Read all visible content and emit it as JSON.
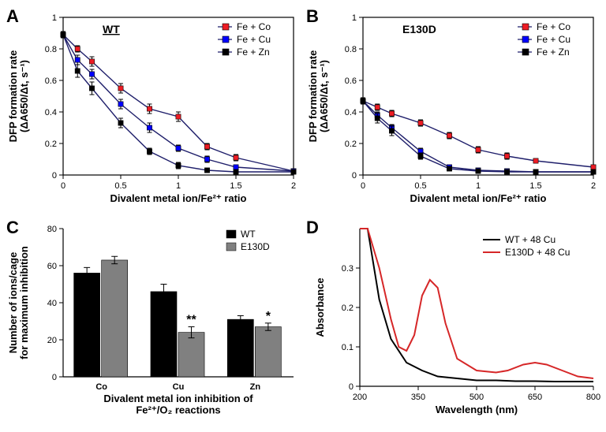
{
  "panelA": {
    "label": "A",
    "type": "line-scatter",
    "title": "WT",
    "title_underline": true,
    "xlabel": "Divalent metal ion/Fe²⁺ ratio",
    "ylabel": "DFP formation rate (ΔA650/Δt, s⁻¹)",
    "xlim": [
      0,
      2
    ],
    "ylim": [
      0,
      1
    ],
    "xticks": [
      0,
      0.5,
      1,
      1.5,
      2
    ],
    "yticks": [
      0,
      0.2,
      0.4,
      0.6,
      0.8,
      1
    ],
    "series": [
      {
        "name": "Fe + Co",
        "color": "#ed1c24",
        "marker": "square",
        "x": [
          0,
          0.125,
          0.25,
          0.5,
          0.75,
          1,
          1.25,
          1.5,
          2
        ],
        "y": [
          0.89,
          0.8,
          0.72,
          0.55,
          0.42,
          0.37,
          0.18,
          0.11,
          0.025
        ],
        "err": [
          0.02,
          0.02,
          0.03,
          0.03,
          0.03,
          0.03,
          0.02,
          0.02,
          0.01
        ]
      },
      {
        "name": "Fe + Cu",
        "color": "#0000ff",
        "marker": "square",
        "x": [
          0,
          0.125,
          0.25,
          0.5,
          0.75,
          1,
          1.25,
          1.5,
          2
        ],
        "y": [
          0.89,
          0.73,
          0.64,
          0.45,
          0.3,
          0.17,
          0.1,
          0.05,
          0.025
        ],
        "err": [
          0.02,
          0.03,
          0.03,
          0.03,
          0.03,
          0.02,
          0.02,
          0.01,
          0.01
        ]
      },
      {
        "name": "Fe + Zn",
        "color": "#000000",
        "marker": "square",
        "x": [
          0,
          0.125,
          0.25,
          0.5,
          0.75,
          1,
          1.25,
          1.5,
          2
        ],
        "y": [
          0.89,
          0.66,
          0.55,
          0.33,
          0.15,
          0.06,
          0.03,
          0.02,
          0.02
        ],
        "err": [
          0.02,
          0.04,
          0.04,
          0.03,
          0.02,
          0.02,
          0.01,
          0.01,
          0.01
        ]
      }
    ],
    "line_color": "#1f1f6b",
    "marker_size": 5,
    "axis_color": "#000000",
    "tick_fontsize": 11,
    "label_fontsize": 13,
    "legend_pos": "top-right"
  },
  "panelB": {
    "label": "B",
    "type": "line-scatter",
    "title": "E130D",
    "title_underline": false,
    "xlabel": "Divalent metal ion/Fe²⁺ ratio",
    "ylabel": "DFP formation rate (ΔA650/Δt, s⁻¹)",
    "xlim": [
      0,
      2
    ],
    "ylim": [
      0,
      1
    ],
    "xticks": [
      0,
      0.5,
      1,
      1.5,
      2
    ],
    "yticks": [
      0,
      0.2,
      0.4,
      0.6,
      0.8,
      1
    ],
    "series": [
      {
        "name": "Fe + Co",
        "color": "#ed1c24",
        "marker": "square",
        "x": [
          0,
          0.125,
          0.25,
          0.5,
          0.75,
          1,
          1.25,
          1.5,
          2
        ],
        "y": [
          0.47,
          0.43,
          0.39,
          0.33,
          0.25,
          0.16,
          0.12,
          0.09,
          0.05
        ],
        "err": [
          0.02,
          0.02,
          0.02,
          0.02,
          0.02,
          0.02,
          0.02,
          0.01,
          0.01
        ]
      },
      {
        "name": "Fe + Cu",
        "color": "#0000ff",
        "marker": "square",
        "x": [
          0,
          0.125,
          0.25,
          0.5,
          0.75,
          1,
          1.25,
          1.5,
          2
        ],
        "y": [
          0.47,
          0.38,
          0.3,
          0.15,
          0.05,
          0.03,
          0.025,
          0.02,
          0.02
        ],
        "err": [
          0.02,
          0.02,
          0.02,
          0.02,
          0.01,
          0.01,
          0.01,
          0.01,
          0.01
        ]
      },
      {
        "name": "Fe + Zn",
        "color": "#000000",
        "marker": "square",
        "x": [
          0,
          0.125,
          0.25,
          0.5,
          0.75,
          1,
          1.25,
          1.5,
          2
        ],
        "y": [
          0.47,
          0.36,
          0.28,
          0.12,
          0.04,
          0.025,
          0.02,
          0.02,
          0.02
        ],
        "err": [
          0.02,
          0.03,
          0.03,
          0.02,
          0.01,
          0.01,
          0.01,
          0.01,
          0.01
        ]
      }
    ],
    "line_color": "#1f1f6b",
    "marker_size": 5,
    "legend_pos": "top-right"
  },
  "panelC": {
    "label": "C",
    "type": "bar",
    "xlabel": "Divalent metal ion inhibition of Fe²⁺/O₂ reactions",
    "ylabel": "Number of ions/cage for maximum inhibition",
    "categories": [
      "Co",
      "Cu",
      "Zn"
    ],
    "ylim": [
      0,
      80
    ],
    "yticks": [
      0,
      20,
      40,
      60,
      80
    ],
    "groups": [
      {
        "name": "WT",
        "color": "#000000",
        "values": [
          56,
          46,
          31
        ],
        "err": [
          3,
          4,
          2
        ]
      },
      {
        "name": "E130D",
        "color": "#808080",
        "values": [
          63,
          24,
          27
        ],
        "err": [
          2,
          3,
          2
        ]
      }
    ],
    "significance": [
      {
        "cat": "Cu",
        "group": "E130D",
        "text": "**"
      },
      {
        "cat": "Zn",
        "group": "E130D",
        "text": "*"
      }
    ],
    "bar_width": 0.36,
    "legend_pos": "top-right"
  },
  "panelD": {
    "label": "D",
    "type": "line",
    "xlabel": "Wavelength (nm)",
    "ylabel": "Absorbance",
    "xlim": [
      200,
      800
    ],
    "ylim": [
      0,
      0.4
    ],
    "xticks": [
      200,
      350,
      500,
      650,
      800
    ],
    "yticks": [
      0,
      0.1,
      0.2,
      0.3
    ],
    "series": [
      {
        "name": "WT + 48 Cu",
        "color": "#000000",
        "x": [
          200,
          220,
          250,
          280,
          320,
          360,
          400,
          450,
          500,
          550,
          600,
          650,
          700,
          750,
          800
        ],
        "y": [
          0.4,
          0.4,
          0.22,
          0.12,
          0.06,
          0.04,
          0.025,
          0.02,
          0.015,
          0.015,
          0.013,
          0.013,
          0.012,
          0.012,
          0.012
        ]
      },
      {
        "name": "E130D + 48 Cu",
        "color": "#d62728",
        "x": [
          200,
          220,
          250,
          280,
          300,
          320,
          340,
          360,
          380,
          400,
          420,
          450,
          500,
          550,
          580,
          620,
          650,
          680,
          720,
          760,
          800
        ],
        "y": [
          0.4,
          0.4,
          0.3,
          0.17,
          0.1,
          0.09,
          0.13,
          0.23,
          0.27,
          0.25,
          0.16,
          0.07,
          0.04,
          0.035,
          0.04,
          0.055,
          0.06,
          0.055,
          0.04,
          0.025,
          0.02
        ]
      }
    ],
    "line_width": 2,
    "legend_pos": "top-right"
  }
}
